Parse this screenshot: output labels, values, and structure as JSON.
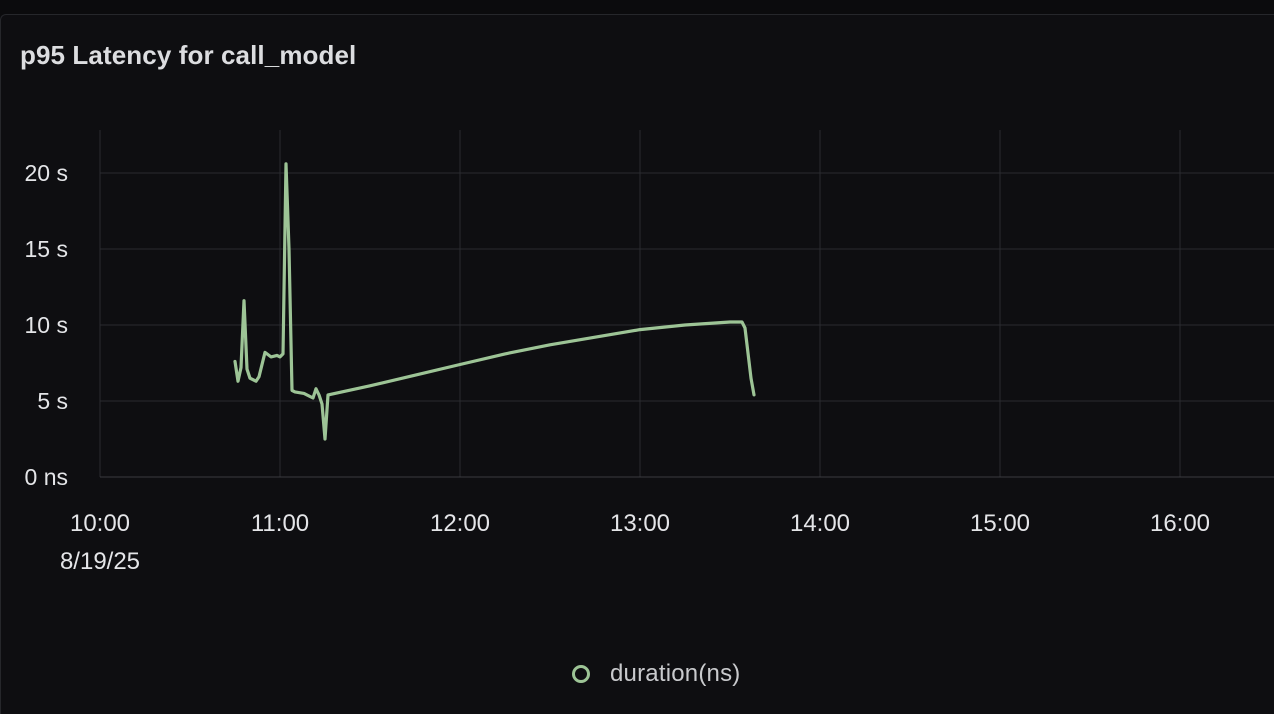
{
  "panel": {
    "title": "p95 Latency for call_model"
  },
  "chart_data": {
    "type": "line",
    "title": "p95 Latency for call_model",
    "xlabel": "",
    "ylabel": "",
    "x_ticks": [
      "10:00",
      "11:00",
      "12:00",
      "13:00",
      "14:00",
      "15:00",
      "16:00"
    ],
    "x_date_label": "8/19/25",
    "y_ticks": [
      "0 ns",
      "5 s",
      "10 s",
      "15 s",
      "20 s"
    ],
    "ylim": [
      0,
      22.5
    ],
    "xlim": [
      "10:00",
      "16:30"
    ],
    "grid": true,
    "legend_position": "bottom",
    "series": [
      {
        "name": "duration(ns)",
        "color": "#9dc496",
        "points": [
          [
            "10:45",
            7.6
          ],
          [
            "10:46",
            6.3
          ],
          [
            "10:47",
            7.2
          ],
          [
            "10:48",
            11.6
          ],
          [
            "10:49",
            7.1
          ],
          [
            "10:50",
            6.5
          ],
          [
            "10:52",
            6.3
          ],
          [
            "10:53",
            6.6
          ],
          [
            "10:55",
            8.2
          ],
          [
            "10:57",
            7.9
          ],
          [
            "10:59",
            8.0
          ],
          [
            "11:00",
            7.9
          ],
          [
            "11:01",
            8.1
          ],
          [
            "11:02",
            20.6
          ],
          [
            "11:03",
            15.0
          ],
          [
            "11:04",
            5.7
          ],
          [
            "11:05",
            5.6
          ],
          [
            "11:08",
            5.5
          ],
          [
            "11:11",
            5.2
          ],
          [
            "11:12",
            5.8
          ],
          [
            "11:13",
            5.4
          ],
          [
            "11:14",
            4.8
          ],
          [
            "11:15",
            2.5
          ],
          [
            "11:16",
            5.4
          ],
          [
            "11:30",
            6.0
          ],
          [
            "11:45",
            6.7
          ],
          [
            "12:00",
            7.4
          ],
          [
            "12:15",
            8.1
          ],
          [
            "12:30",
            8.7
          ],
          [
            "12:45",
            9.2
          ],
          [
            "13:00",
            9.7
          ],
          [
            "13:15",
            10.0
          ],
          [
            "13:30",
            10.2
          ],
          [
            "13:34",
            10.2
          ],
          [
            "13:35",
            9.8
          ],
          [
            "13:37",
            6.5
          ],
          [
            "13:38",
            5.4
          ]
        ]
      }
    ]
  },
  "legend": {
    "label": "duration(ns)"
  }
}
